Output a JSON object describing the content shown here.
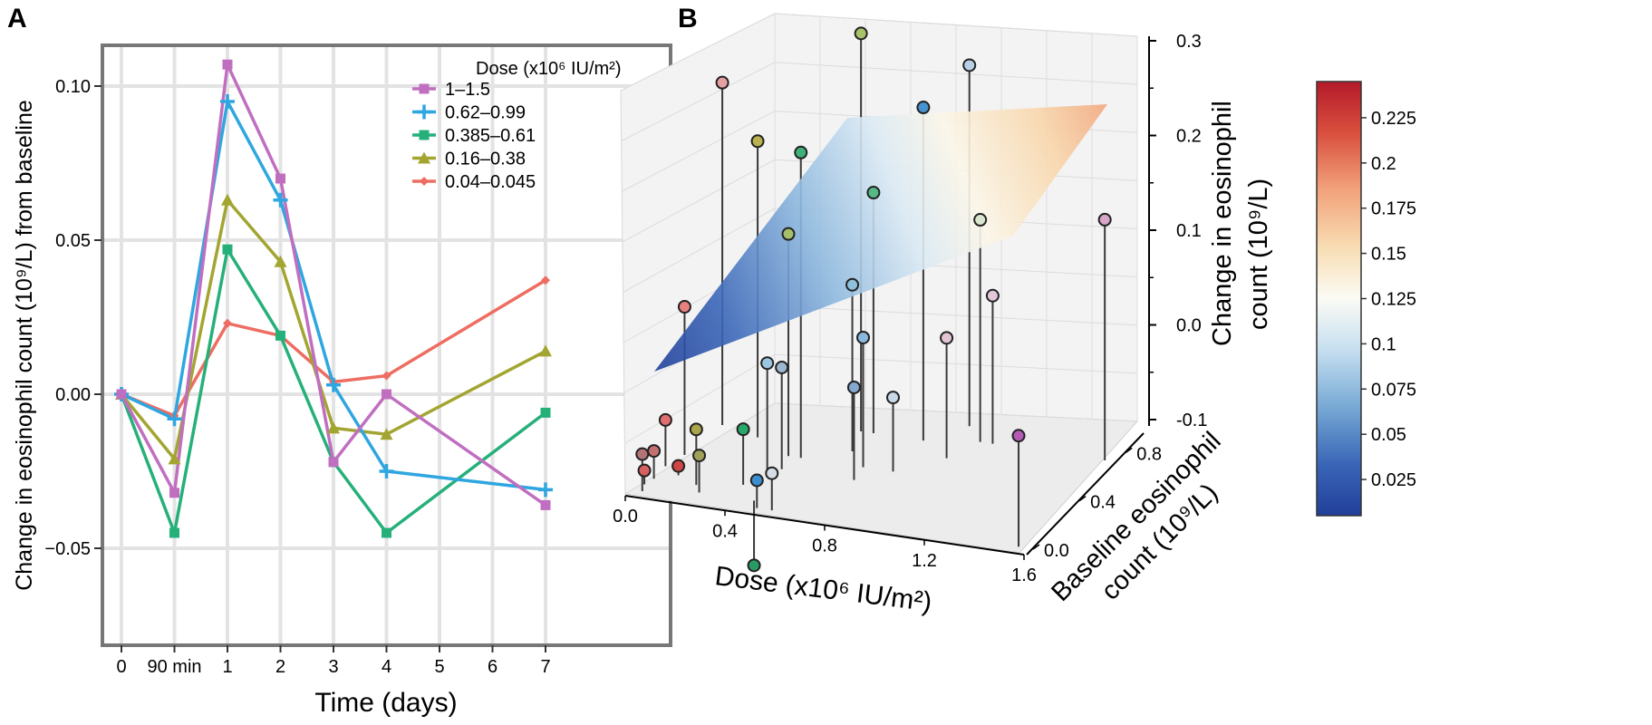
{
  "panels": {
    "a_label": "A",
    "b_label": "B"
  },
  "chart_data": [
    {
      "type": "line",
      "panel": "A",
      "title": "",
      "xlabel": "Time (days)",
      "ylabel": "Change in eosinophil count (10⁹/L) from baseline",
      "x_tick_labels": [
        "0",
        "90 min",
        "1",
        "2",
        "3",
        "4",
        "5",
        "6",
        "7"
      ],
      "y_ticks": [
        -0.05,
        0.0,
        0.05,
        0.1
      ],
      "y_tick_labels": [
        "−0.05",
        "0.00",
        "0.05",
        "0.10"
      ],
      "ylim": [
        -0.052,
        0.118
      ],
      "grid": true,
      "legend_title": "Dose (x10⁶ IU/m²)",
      "legend_placement": "top-right",
      "series": [
        {
          "name": "1–1.5",
          "color": "#c06fc0",
          "marker": "square",
          "x": [
            "0",
            "90 min",
            "1",
            "2",
            "3",
            "4",
            "7"
          ],
          "values": [
            0.0,
            -0.032,
            0.107,
            0.07,
            -0.022,
            0.0,
            -0.036
          ]
        },
        {
          "name": "0.62–0.99",
          "color": "#2ea6e0",
          "marker": "plus",
          "x": [
            "0",
            "90 min",
            "1",
            "2",
            "3",
            "4",
            "7"
          ],
          "values": [
            0.0,
            -0.008,
            0.095,
            0.063,
            0.003,
            -0.025,
            -0.031
          ]
        },
        {
          "name": "0.385–0.61",
          "color": "#25b07a",
          "marker": "square",
          "x": [
            "0",
            "90 min",
            "1",
            "2",
            "3",
            "4",
            "7"
          ],
          "values": [
            0.0,
            -0.045,
            0.047,
            0.019,
            -0.022,
            -0.045,
            -0.006
          ]
        },
        {
          "name": "0.16–0.38",
          "color": "#a3a531",
          "marker": "triangle",
          "x": [
            "0",
            "90 min",
            "1",
            "2",
            "3",
            "4",
            "7"
          ],
          "values": [
            0.0,
            -0.021,
            0.063,
            0.043,
            -0.011,
            -0.013,
            0.014
          ]
        },
        {
          "name": "0.04–0.045",
          "color": "#ee6d62",
          "marker": "diamond",
          "x": [
            "0",
            "90 min",
            "1",
            "2",
            "3",
            "4",
            "7"
          ],
          "values": [
            0.0,
            -0.007,
            0.023,
            0.019,
            0.004,
            0.006,
            0.037
          ]
        }
      ]
    },
    {
      "type": "scatter",
      "panel": "B",
      "title": "",
      "projection": "3d",
      "xlabel": "Dose (x10⁶ IU/m²)",
      "ylabel_line1": "Baseline eosinophil",
      "ylabel_line2": "count  (10⁹/L)",
      "zlabel_line1": "Change in eosinophil",
      "zlabel_line2": "count (10⁹/L)",
      "x_tick_labels": [
        "0.0",
        "0.4",
        "0.8",
        "1.2",
        "1.6"
      ],
      "x_ticks": [
        0.0,
        0.4,
        0.8,
        1.2,
        1.6
      ],
      "xlim": [
        0.0,
        1.6
      ],
      "y_tick_labels": [
        "0.0",
        "0.4",
        "0.8"
      ],
      "y_ticks": [
        0.0,
        0.4,
        0.8
      ],
      "ylim": [
        0.0,
        0.9
      ],
      "z_tick_labels": [
        "-0.1",
        "0.0",
        "0.1",
        "0.2",
        "0.3"
      ],
      "z_ticks": [
        -0.1,
        0.0,
        0.1,
        0.2,
        0.3
      ],
      "zlim": [
        -0.1,
        0.3
      ],
      "surface": "fitted regression plane",
      "colorbar_ticks": [
        "0.025",
        "0.05",
        "0.075",
        "0.1",
        "0.125",
        "0.15",
        "0.175",
        "0.2",
        "0.225"
      ],
      "colorbar_range": [
        0.005,
        0.245
      ],
      "colormap": "red-blue diverging",
      "points": [
        {
          "x": 0.05,
          "y": 0.6,
          "z": 0.27,
          "color": "#e5a1a1"
        },
        {
          "x": 0.04,
          "y": 0.35,
          "z": 0.06,
          "color": "#e88080"
        },
        {
          "x": 0.1,
          "y": 0.2,
          "z": -0.09,
          "color": "#d04545"
        },
        {
          "x": 0.03,
          "y": 0.15,
          "z": -0.07,
          "color": "#c47070"
        },
        {
          "x": 0.02,
          "y": 0.1,
          "z": -0.085,
          "color": "#d96060"
        },
        {
          "x": 0.04,
          "y": 0.05,
          "z": -0.06,
          "color": "#b57474"
        },
        {
          "x": 0.02,
          "y": 0.25,
          "z": -0.05,
          "color": "#e07070"
        },
        {
          "x": 0.22,
          "y": 0.55,
          "z": 0.22,
          "color": "#b9b24f"
        },
        {
          "x": 0.2,
          "y": 0.15,
          "z": -0.04,
          "color": "#aaa54a"
        },
        {
          "x": 0.24,
          "y": 0.1,
          "z": -0.06,
          "color": "#a0a05a"
        },
        {
          "x": 0.4,
          "y": 0.45,
          "z": 0.14,
          "color": "#a6bf6a"
        },
        {
          "x": 0.45,
          "y": 0.45,
          "z": 0.23,
          "color": "#3fb07a"
        },
        {
          "x": 0.36,
          "y": 0.2,
          "z": -0.04,
          "color": "#27a86b"
        },
        {
          "x": 0.46,
          "y": 0.1,
          "z": -0.17,
          "color": "#2a9a63"
        },
        {
          "x": 0.4,
          "y": 0.3,
          "z": 0.02,
          "color": "#9bc6e0"
        },
        {
          "x": 0.43,
          "y": 0.35,
          "z": 0.01,
          "color": "#9cb7d0"
        },
        {
          "x": 0.55,
          "y": 0.7,
          "z": 0.33,
          "color": "#a8c26a"
        },
        {
          "x": 0.6,
          "y": 0.7,
          "z": 0.16,
          "color": "#55b985"
        },
        {
          "x": 0.6,
          "y": 0.55,
          "z": 0.08,
          "color": "#8fc0dc"
        },
        {
          "x": 0.5,
          "y": 0.05,
          "z": -0.07,
          "color": "#3b8fd0"
        },
        {
          "x": 0.7,
          "y": 0.45,
          "z": 0.04,
          "color": "#8ab8dc"
        },
        {
          "x": 0.72,
          "y": 0.35,
          "z": 0.0,
          "color": "#85a8d0"
        },
        {
          "x": 0.56,
          "y": 0.05,
          "z": -0.06,
          "color": "#d6dde6"
        },
        {
          "x": 0.8,
          "y": 0.7,
          "z": 0.26,
          "color": "#4793d2"
        },
        {
          "x": 0.9,
          "y": 0.85,
          "z": 0.29,
          "color": "#b8d0e6"
        },
        {
          "x": 1.0,
          "y": 0.75,
          "z": 0.14,
          "color": "#dbe6cf"
        },
        {
          "x": 0.95,
          "y": 0.6,
          "z": 0.03,
          "color": "#e3c4d6"
        },
        {
          "x": 0.82,
          "y": 0.45,
          "z": -0.02,
          "color": "#c9d8e6"
        },
        {
          "x": 1.05,
          "y": 0.75,
          "z": 0.06,
          "color": "#e2c8d8"
        },
        {
          "x": 1.5,
          "y": 0.75,
          "z": 0.16,
          "color": "#d8a6c8"
        },
        {
          "x": 1.55,
          "y": 0.05,
          "z": 0.02,
          "color": "#b45ab4"
        }
      ]
    }
  ]
}
